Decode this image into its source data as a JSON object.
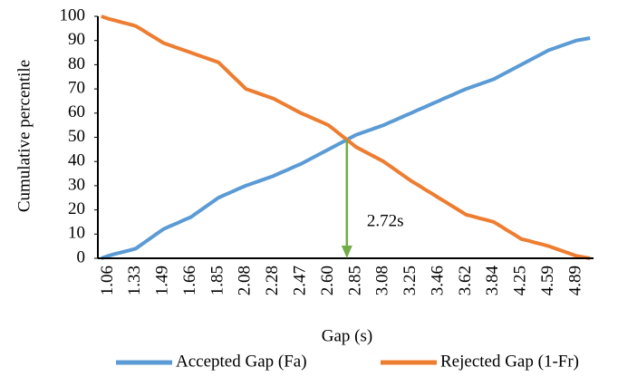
{
  "chart_data": {
    "type": "line",
    "x_label": "Gap (s)",
    "y_label": "Cumulative percentile",
    "categories": [
      null,
      "1.06",
      null,
      null,
      null,
      "1.33",
      null,
      null,
      null,
      "1.49",
      null,
      null,
      null,
      "1.66",
      null,
      null,
      null,
      "1.85",
      null,
      null,
      null,
      "2.08",
      null,
      null,
      null,
      "2.28",
      null,
      null,
      null,
      "2.47",
      null,
      null,
      null,
      "2.60",
      null,
      null,
      null,
      "2.85",
      null,
      null,
      null,
      "3.08",
      null,
      null,
      null,
      "3.25",
      null,
      null,
      null,
      "3.46",
      null,
      null,
      null,
      "3.62",
      null,
      null,
      null,
      "3.84",
      null,
      null,
      null,
      "4.25",
      null,
      null,
      null,
      "4.59",
      null,
      null,
      null,
      "4.89",
      null,
      null
    ],
    "series": [
      {
        "name": "Accepted Gap (Fa)",
        "color": "#5b9bd5",
        "values": [
          0,
          1,
          1.8,
          2.5,
          3.2,
          4,
          6,
          8,
          10,
          12,
          13.3,
          14.5,
          15.8,
          17,
          19,
          21,
          23,
          25,
          26.3,
          27.5,
          28.8,
          30,
          31,
          32,
          33,
          34,
          35.3,
          36.5,
          37.8,
          39,
          40.5,
          42,
          43.5,
          45,
          46.5,
          48,
          49.5,
          51,
          52,
          53,
          54,
          55,
          56.3,
          57.5,
          58.8,
          60,
          61.3,
          62.5,
          63.8,
          65,
          66.3,
          67.5,
          68.8,
          70,
          71,
          72,
          73,
          74,
          75.5,
          77,
          78.5,
          80,
          81.5,
          83,
          84.5,
          86,
          87,
          88,
          89,
          90,
          90.5,
          91
        ]
      },
      {
        "name": "Rejected Gap (1-Fr)",
        "color": "#ed7d31",
        "values": [
          100,
          99,
          98.3,
          97.5,
          96.8,
          96,
          94.3,
          92.5,
          90.8,
          89,
          88,
          87,
          86,
          85,
          84,
          83,
          82,
          81,
          78.3,
          75.5,
          72.8,
          70,
          69,
          68,
          67,
          66,
          64.5,
          63,
          61.5,
          60,
          58.8,
          57.5,
          56.3,
          55,
          52.8,
          50.5,
          48.3,
          46,
          44.5,
          43,
          41.5,
          40,
          38,
          36,
          34,
          32,
          30.3,
          28.5,
          26.8,
          25,
          23.3,
          21.5,
          19.8,
          18,
          17.3,
          16.5,
          15.8,
          15,
          13.3,
          11.5,
          9.8,
          8,
          7.3,
          6.5,
          5.8,
          5,
          4,
          3,
          2,
          1,
          0.5,
          0
        ]
      }
    ],
    "annotation": {
      "text": "2.72s",
      "color": "#70ad47"
    },
    "ylim": [
      0,
      100
    ],
    "yticks": [
      0,
      10,
      20,
      30,
      40,
      50,
      60,
      70,
      80,
      90,
      100
    ],
    "grid": false,
    "legend": "bottom"
  }
}
